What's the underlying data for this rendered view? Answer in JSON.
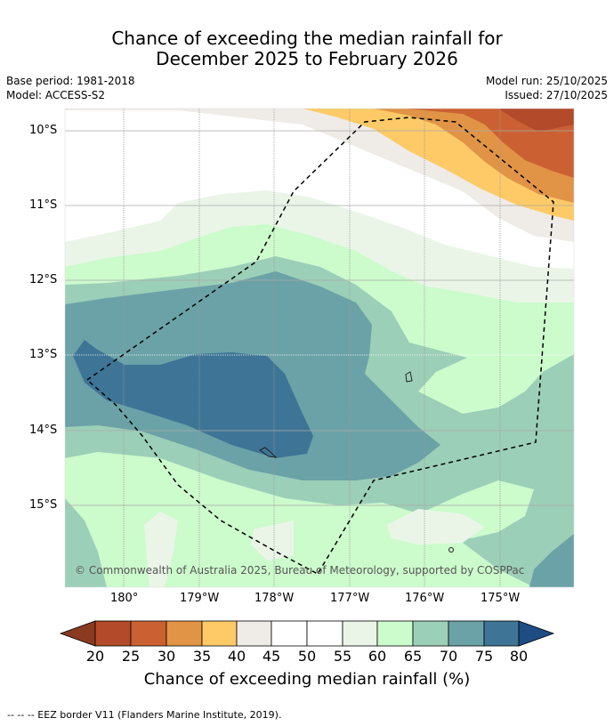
{
  "title": {
    "line1": "Chance of exceeding the median rainfall for",
    "line2": "December 2025 to February 2026"
  },
  "meta": {
    "base_period": "Base period: 1981-2018",
    "model": "Model: ACCESS-S2",
    "model_run": "Model run: 25/10/2025",
    "issued": "Issued: 27/10/2025"
  },
  "map": {
    "lat_labels": [
      "10°S",
      "11°S",
      "12°S",
      "13°S",
      "14°S",
      "15°S"
    ],
    "lon_labels": [
      "180°",
      "179°W",
      "178°W",
      "177°W",
      "176°W",
      "175°W"
    ],
    "copyright": "© Commonwealth of Australia 2025, Bureau of Meteorology, supported by COSPPac",
    "region_colors": {
      "c20": "#b34a2a",
      "c25": "#cb6133",
      "c30": "#e19446",
      "c35": "#fdca67",
      "c40": "#efebe6",
      "c45": "#ffffff",
      "c55": "#eaf5e8",
      "c60": "#ccfbcc",
      "c65": "#9ccfb8",
      "c70": "#6ba2a7",
      "c75": "#3e7596",
      "c80": "#1e4d84",
      "c15": "#8b3a22"
    }
  },
  "colorbar": {
    "ticks": [
      "20",
      "25",
      "30",
      "35",
      "40",
      "45",
      "50",
      "55",
      "60",
      "65",
      "70",
      "75",
      "80"
    ],
    "title": "Chance of exceeding median rainfall (%)"
  },
  "footer": {
    "legend_line": "--  --  -- EEZ border V11 (Flanders Marine Institute, 2019)."
  }
}
